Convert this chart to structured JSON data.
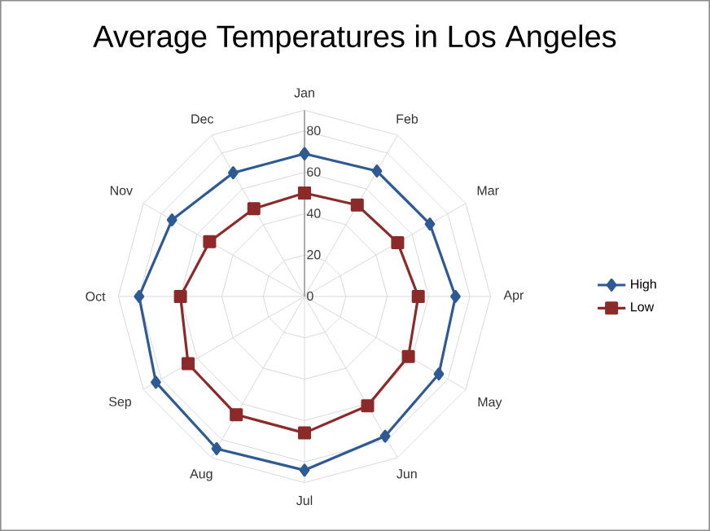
{
  "chart_data": {
    "type": "radar",
    "title": "Average Temperatures in Los Angeles",
    "categories": [
      "Jan",
      "Feb",
      "Mar",
      "Apr",
      "May",
      "Jun",
      "Jul",
      "Aug",
      "Sep",
      "Oct",
      "Nov",
      "Dec"
    ],
    "series": [
      {
        "name": "High",
        "color": "#2e5a94",
        "marker": "diamond",
        "values": [
          69,
          70,
          70,
          73,
          75,
          78,
          84,
          85,
          83,
          80,
          74,
          69
        ]
      },
      {
        "name": "Low",
        "color": "#8c2a2a",
        "marker": "square",
        "values": [
          50,
          51,
          52,
          55,
          58,
          61,
          66,
          66,
          65,
          60,
          53,
          49
        ]
      }
    ],
    "ylim": [
      0,
      90
    ],
    "yticks": [
      0,
      20,
      40,
      60,
      80
    ],
    "grid": true,
    "legend": "right"
  }
}
